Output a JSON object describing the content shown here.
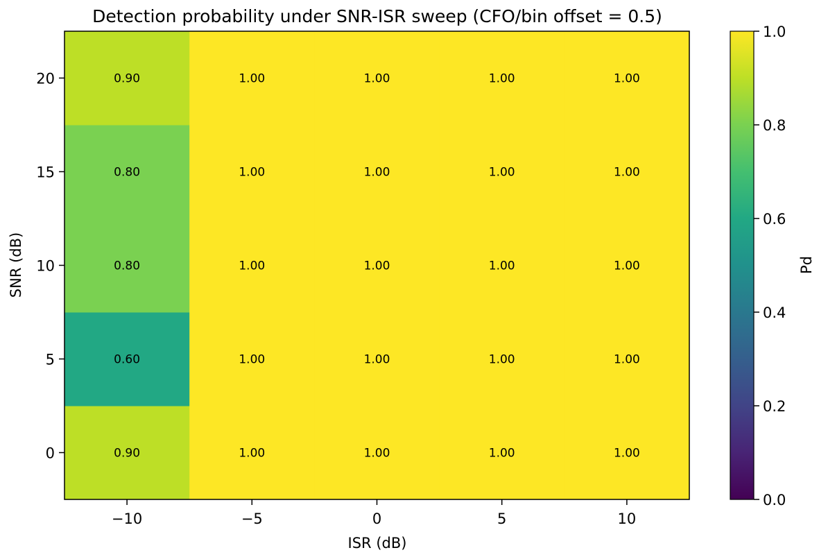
{
  "chart_data": {
    "type": "heatmap",
    "title": "Detection probability under SNR-ISR sweep (CFO/bin offset = 0.5)",
    "xlabel": "ISR (dB)",
    "ylabel": "SNR (dB)",
    "x": [
      "−10",
      "−5",
      "0",
      "5",
      "10"
    ],
    "y": [
      "0",
      "5",
      "10",
      "15",
      "20"
    ],
    "values": [
      [
        0.9,
        1.0,
        1.0,
        1.0,
        1.0
      ],
      [
        0.6,
        1.0,
        1.0,
        1.0,
        1.0
      ],
      [
        0.8,
        1.0,
        1.0,
        1.0,
        1.0
      ],
      [
        0.8,
        1.0,
        1.0,
        1.0,
        1.0
      ],
      [
        0.9,
        1.0,
        1.0,
        1.0,
        1.0
      ]
    ],
    "colormap": "viridis",
    "colorbar": {
      "label": "Pd",
      "range": [
        0.0,
        1.0
      ],
      "ticks": [
        "0.0",
        "0.2",
        "0.4",
        "0.6",
        "0.8",
        "1.0"
      ]
    },
    "grid": false
  }
}
